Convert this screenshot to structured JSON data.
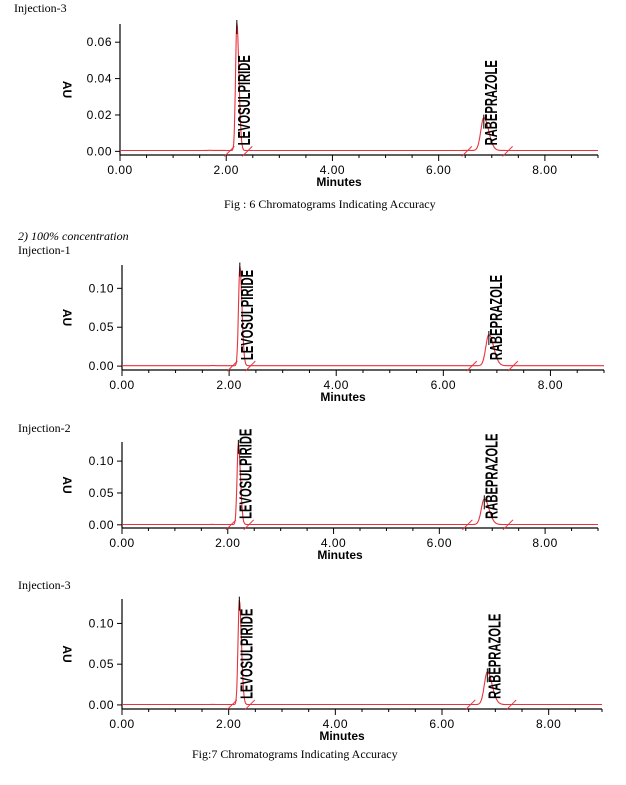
{
  "captions": {
    "fig6": "Fig : 6 Chromatograms Indicating Accuracy",
    "section": "2)    100% concentration",
    "fig7": "Fig:7 Chromatograms Indicating Accuracy"
  },
  "colors": {
    "trace": "#e8323c",
    "axis": "#000000"
  },
  "chart_data": [
    {
      "type": "line",
      "title": "Injection-3",
      "xlabel": "Minutes",
      "ylabel": "AU",
      "xlim": [
        0,
        9.0
      ],
      "ylim": [
        -0.002,
        0.07
      ],
      "xticks": [
        "0.00",
        "2.00",
        "4.00",
        "6.00",
        "8.00"
      ],
      "yticks": [
        "0.00",
        "0.02",
        "0.04",
        "0.06"
      ],
      "peaks": [
        {
          "name": "LEVOSULPIRIDE",
          "rt": 2.2,
          "height": 0.07
        },
        {
          "name": "RABEPRAZOLE",
          "rt": 6.85,
          "height": 0.018
        }
      ]
    },
    {
      "type": "line",
      "title": "Injection-1",
      "xlabel": "Minutes",
      "ylabel": "AU",
      "xlim": [
        0,
        9.0
      ],
      "ylim": [
        -0.005,
        0.13
      ],
      "xticks": [
        "0.00",
        "2.00",
        "4.00",
        "6.00",
        "8.00"
      ],
      "yticks": [
        "0.00",
        "0.05",
        "0.10"
      ],
      "peaks": [
        {
          "name": "LEVOSULPIRIDE",
          "rt": 2.2,
          "height": 0.128
        },
        {
          "name": "RABEPRAZOLE",
          "rt": 6.85,
          "height": 0.04
        }
      ]
    },
    {
      "type": "line",
      "title": "Injection-2",
      "xlabel": "Minutes",
      "ylabel": "AU",
      "xlim": [
        0,
        9.0
      ],
      "ylim": [
        -0.005,
        0.13
      ],
      "xticks": [
        "0.00",
        "2.00",
        "4.00",
        "6.00",
        "8.00"
      ],
      "yticks": [
        "0.00",
        "0.05",
        "0.10"
      ],
      "peaks": [
        {
          "name": "LEVOSULPIRIDE",
          "rt": 2.2,
          "height": 0.127
        },
        {
          "name": "RABEPRAZOLE",
          "rt": 6.85,
          "height": 0.04
        }
      ]
    },
    {
      "type": "line",
      "title": "Injection-3",
      "xlabel": "Minutes",
      "ylabel": "AU",
      "xlim": [
        0,
        9.0
      ],
      "ylim": [
        -0.005,
        0.13
      ],
      "xticks": [
        "0.00",
        "2.00",
        "4.00",
        "6.00",
        "8.00"
      ],
      "yticks": [
        "0.00",
        "0.05",
        "0.10"
      ],
      "peaks": [
        {
          "name": "LEVOSULPIRIDE",
          "rt": 2.2,
          "height": 0.128
        },
        {
          "name": "RABEPRAZOLE",
          "rt": 6.85,
          "height": 0.04
        }
      ]
    }
  ]
}
